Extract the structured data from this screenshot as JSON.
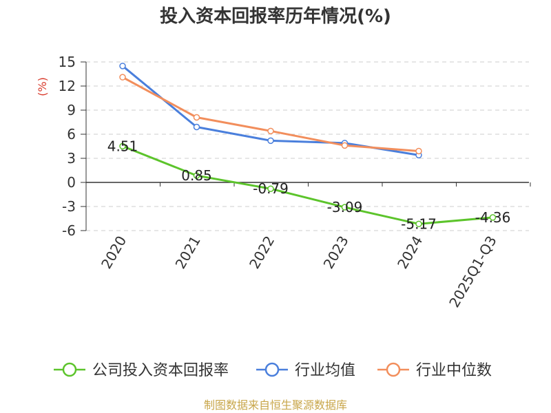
{
  "chart_data": {
    "type": "line",
    "title": "投入资本回报率历年情况(%)",
    "ylabel": "(%)",
    "ylim": [
      -6,
      15
    ],
    "yticks": [
      15,
      12,
      9,
      6,
      3,
      0,
      -3,
      -6
    ],
    "categories": [
      "2020",
      "2021",
      "2022",
      "2023",
      "2024",
      "2025Q1-Q3"
    ],
    "grid": true,
    "legend_position": "bottom",
    "series": [
      {
        "name": "公司投入资本回报率",
        "color": "#5cc42b",
        "values": [
          4.51,
          0.85,
          -0.79,
          -3.09,
          -5.17,
          -4.36
        ],
        "labels": [
          "4.51",
          "0.85",
          "-0.79",
          "-3.09",
          "-5.17",
          "-4.36"
        ]
      },
      {
        "name": "行业均值",
        "color": "#4a7fdc",
        "values": [
          14.5,
          6.9,
          5.2,
          4.9,
          3.4,
          null
        ]
      },
      {
        "name": "行业中位数",
        "color": "#f28e5c",
        "values": [
          13.1,
          8.1,
          6.4,
          4.6,
          3.9,
          null
        ]
      }
    ]
  },
  "source": {
    "text": "制图数据来自恒生聚源数据库",
    "color": "#c8a64a"
  },
  "colors": {
    "ylabel": "#d93a2b",
    "axis": "#333333",
    "grid": "#cccccc"
  }
}
